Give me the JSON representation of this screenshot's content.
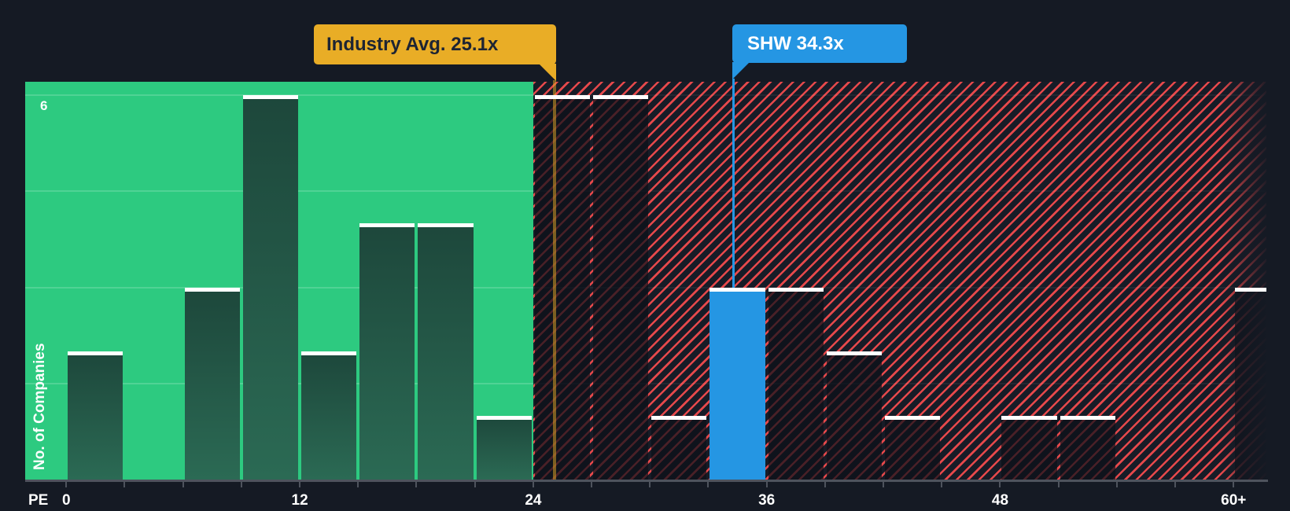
{
  "chart_data": {
    "type": "bar",
    "subtype": "histogram",
    "x_axis": {
      "label": "PE",
      "min": 0,
      "max": 63,
      "bin_size": 3,
      "tick_step": 3,
      "last_tick": 60,
      "labeled_ticks": [
        {
          "value": 0,
          "label": "0"
        },
        {
          "value": 12,
          "label": "12"
        },
        {
          "value": 24,
          "label": "24"
        },
        {
          "value": 36,
          "label": "36"
        },
        {
          "value": 48,
          "label": "48"
        },
        {
          "value": 60,
          "label": "60+"
        }
      ]
    },
    "y_axis": {
      "label": "No. of Companies",
      "min": 0,
      "max_visible": 6.2,
      "gridlines": [
        1.5,
        3,
        4.5,
        6
      ],
      "labeled_gridlines": [
        {
          "value": 6,
          "label": "6"
        }
      ]
    },
    "bins": [
      {
        "start": 0,
        "end": 3,
        "count": 2
      },
      {
        "start": 3,
        "end": 6,
        "count": 0
      },
      {
        "start": 6,
        "end": 9,
        "count": 3
      },
      {
        "start": 9,
        "end": 12,
        "count": 6
      },
      {
        "start": 12,
        "end": 15,
        "count": 2
      },
      {
        "start": 15,
        "end": 18,
        "count": 4
      },
      {
        "start": 18,
        "end": 21,
        "count": 4
      },
      {
        "start": 21,
        "end": 24,
        "count": 1
      },
      {
        "start": 24,
        "end": 27,
        "count": 6
      },
      {
        "start": 27,
        "end": 30,
        "count": 6
      },
      {
        "start": 30,
        "end": 33,
        "count": 1
      },
      {
        "start": 33,
        "end": 36,
        "count": 3,
        "highlight": true
      },
      {
        "start": 36,
        "end": 39,
        "count": 3
      },
      {
        "start": 39,
        "end": 42,
        "count": 2
      },
      {
        "start": 42,
        "end": 45,
        "count": 1
      },
      {
        "start": 45,
        "end": 48,
        "count": 0
      },
      {
        "start": 48,
        "end": 51,
        "count": 1
      },
      {
        "start": 51,
        "end": 54,
        "count": 1
      },
      {
        "start": 54,
        "end": 57,
        "count": 0
      },
      {
        "start": 57,
        "end": 60,
        "count": 0
      },
      {
        "start": 60,
        "end": 63,
        "count": 3,
        "truncated": true
      }
    ],
    "zones": [
      {
        "from": 0,
        "to": 24,
        "kind": "below-average",
        "fill": "#2dca80"
      },
      {
        "from": 24,
        "to": 63,
        "kind": "above-average",
        "fill": "#171c27",
        "hatch_color": "#f14b4d"
      }
    ],
    "markers": [
      {
        "id": "industry-avg",
        "label": "Industry Avg. 25.1x",
        "value": 25.1,
        "style": "amber",
        "align": "right",
        "line_to": "axis"
      },
      {
        "id": "company",
        "label": "SHW 34.3x",
        "value": 34.3,
        "style": "blue",
        "align": "left",
        "line_to": "bar"
      }
    ]
  },
  "colors": {
    "background": "#151a24",
    "zone_below_avg": "#2dca80",
    "zone_above_avg_bg": "#171c27",
    "hatch_red": "#f14b4d",
    "bar_green_top": "#1d473b",
    "bar_green_bottom": "#2b6a54",
    "bar_cap": "#ffffff",
    "company_blue": "#2596e3",
    "industry_amber": "#e9ad26",
    "axis_gray": "#4e535d",
    "flag_text_dark": "#1d2433",
    "text_white": "#ffffff"
  }
}
